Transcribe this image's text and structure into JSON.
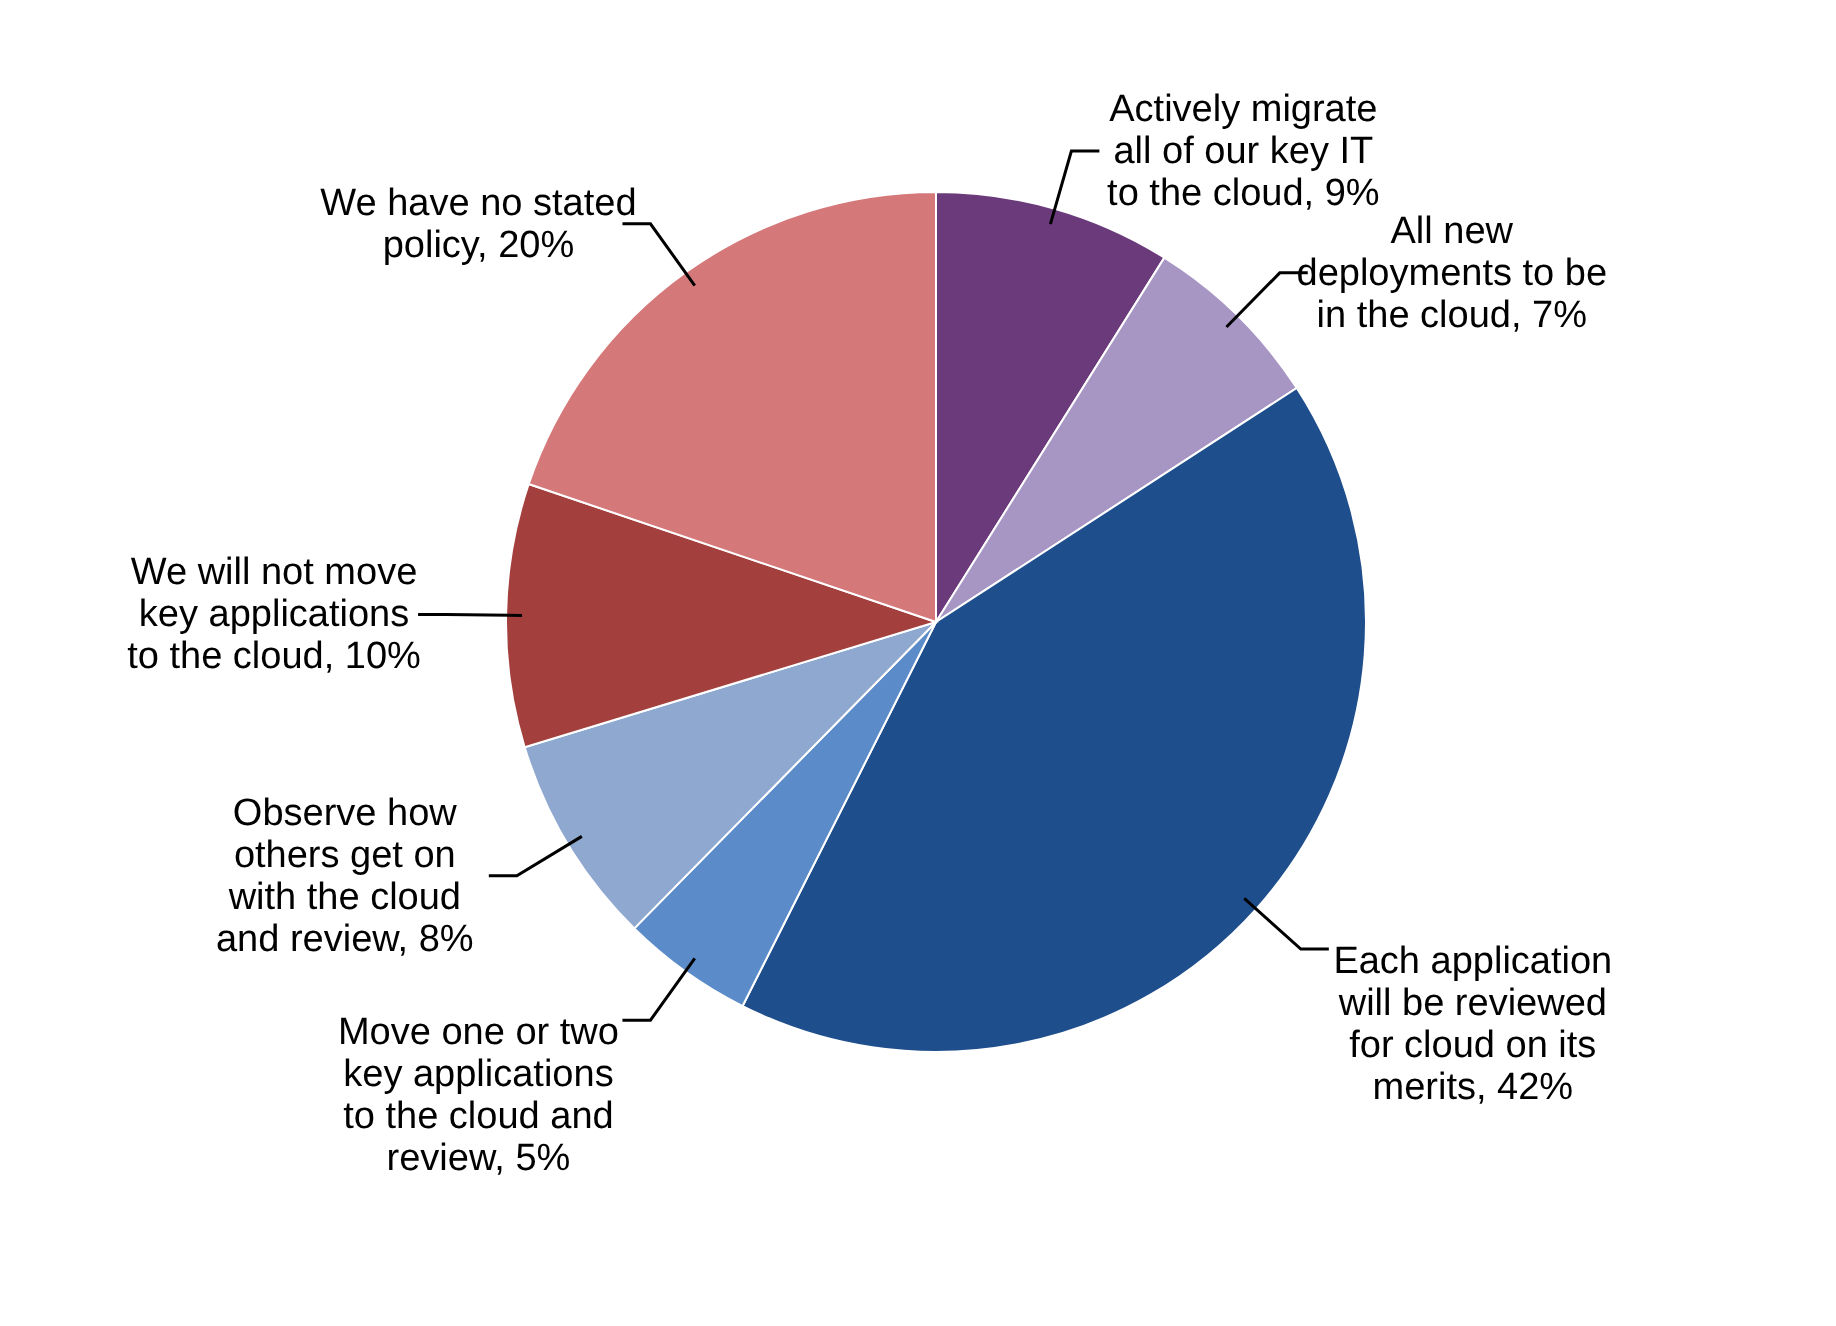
{
  "chart_data": {
    "type": "pie",
    "categories": [
      "Actively migrate all of our key IT to the cloud",
      "All new deployments to be in the cloud",
      "Each application will be reviewed for cloud on its merits",
      "Move one or two key applications to the cloud and review",
      "Observe how others get on with the cloud and review",
      "We will not move key applications to the cloud",
      "We have no stated policy"
    ],
    "values": [
      9,
      7,
      42,
      5,
      8,
      10,
      20
    ],
    "value_labels": [
      "9%",
      "7%",
      "42%",
      "5%",
      "8%",
      "10%",
      "20%"
    ],
    "colors": [
      "#6b3a7a",
      "#a795c4",
      "#1f4e8c",
      "#5b8bc8",
      "#8fa8d0",
      "#a3403e",
      "#d4787a"
    ],
    "legend": false
  }
}
